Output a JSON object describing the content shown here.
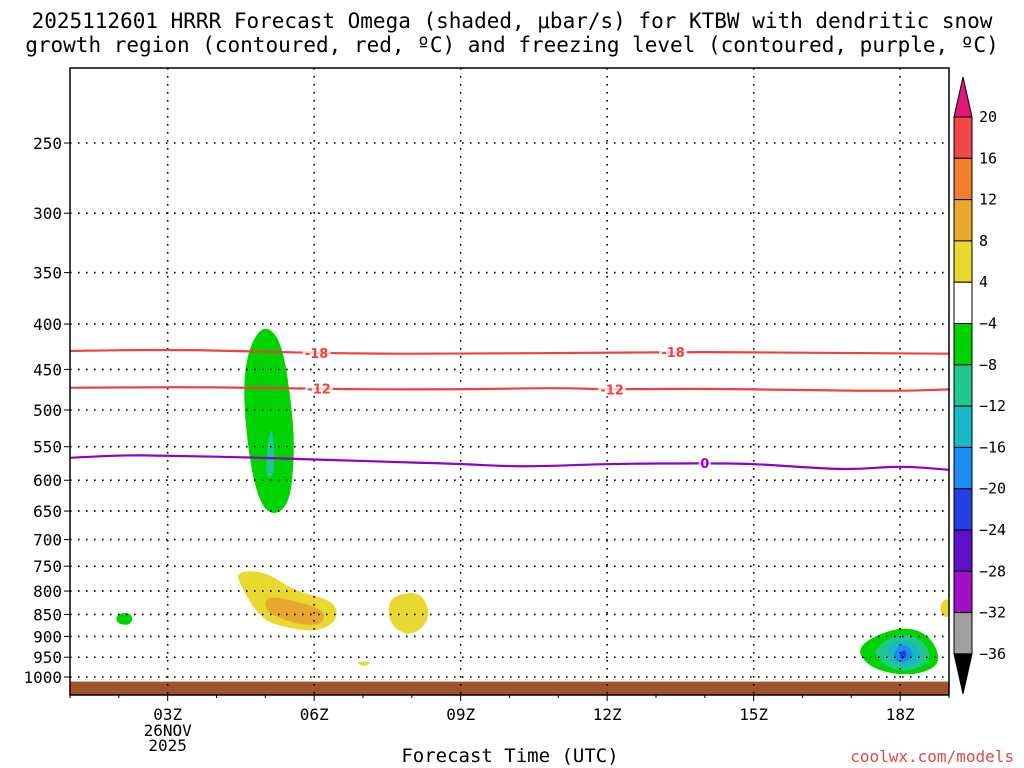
{
  "chart_data": {
    "type": "heatmap",
    "title_line1": "2025112601 HRRR Forecast Omega (shaded, μbar/s) for KTBW with dendritic snow",
    "title_line2": "growth region (contoured, red, ºC) and freezing level (contoured, purple, ºC)",
    "xlabel": "Forecast Time (UTC)",
    "ylabel": "",
    "xlim": [
      1,
      19
    ],
    "ylim": [
      1025,
      200
    ],
    "x_ticks": [
      {
        "hour": 3,
        "label": "03Z",
        "date": "26NOV",
        "year": "2025"
      },
      {
        "hour": 6,
        "label": "06Z"
      },
      {
        "hour": 9,
        "label": "09Z"
      },
      {
        "hour": 12,
        "label": "12Z"
      },
      {
        "hour": 15,
        "label": "15Z"
      },
      {
        "hour": 18,
        "label": "18Z"
      }
    ],
    "y_ticks": [
      250,
      300,
      350,
      400,
      450,
      500,
      550,
      600,
      650,
      700,
      750,
      800,
      850,
      900,
      950,
      1000
    ],
    "grid": true,
    "colorbar": {
      "labels": [
        "20",
        "16",
        "12",
        "8",
        "4",
        "−4",
        "−8",
        "−12",
        "−16",
        "−20",
        "−24",
        "−28",
        "−32",
        "−36"
      ],
      "bins": [
        {
          "from": 20,
          "to": 24,
          "color": "#e0187a"
        },
        {
          "from": 16,
          "to": 20,
          "color": "#f04848"
        },
        {
          "from": 12,
          "to": 16,
          "color": "#f0802c"
        },
        {
          "from": 8,
          "to": 12,
          "color": "#e8a830"
        },
        {
          "from": 4,
          "to": 8,
          "color": "#e8d830"
        },
        {
          "from": -4,
          "to": 4,
          "color": "#ffffff"
        },
        {
          "from": -8,
          "to": -4,
          "color": "#00d400"
        },
        {
          "from": -12,
          "to": -8,
          "color": "#20c890"
        },
        {
          "from": -16,
          "to": -12,
          "color": "#18b8c8"
        },
        {
          "from": -20,
          "to": -16,
          "color": "#1c8cf0"
        },
        {
          "from": -24,
          "to": -20,
          "color": "#2440e0"
        },
        {
          "from": -28,
          "to": -24,
          "color": "#6010c8"
        },
        {
          "from": -32,
          "to": -28,
          "color": "#a010c8"
        },
        {
          "from": -36,
          "to": -32,
          "color": "#a0a0a0"
        },
        {
          "from": -40,
          "to": -36,
          "color": "#000000"
        }
      ]
    },
    "contours": [
      {
        "name": "dgz-minus18",
        "label": "-18",
        "color": "#f04040",
        "label_at": [
          6.05,
          13.35
        ],
        "points": [
          [
            1,
            429
          ],
          [
            3,
            427
          ],
          [
            5,
            430
          ],
          [
            7,
            432
          ],
          [
            9,
            432
          ],
          [
            12,
            431
          ],
          [
            14,
            430
          ],
          [
            16,
            431
          ],
          [
            19,
            432
          ]
        ]
      },
      {
        "name": "dgz-minus12",
        "label": "-12",
        "color": "#f04040",
        "label_at": [
          6.1,
          12.1
        ],
        "points": [
          [
            1,
            472
          ],
          [
            3,
            471
          ],
          [
            5,
            472
          ],
          [
            7,
            474
          ],
          [
            9,
            474
          ],
          [
            11,
            472
          ],
          [
            12,
            474
          ],
          [
            14,
            473
          ],
          [
            16,
            475
          ],
          [
            18,
            476
          ],
          [
            19,
            474
          ]
        ]
      },
      {
        "name": "freezing-level",
        "label": "0",
        "color": "#9000c8",
        "label_at": [
          14.0
        ],
        "points": [
          [
            1,
            566
          ],
          [
            2,
            562
          ],
          [
            3,
            563
          ],
          [
            5,
            566
          ],
          [
            7,
            571
          ],
          [
            9,
            575
          ],
          [
            10,
            579
          ],
          [
            11,
            578
          ],
          [
            12,
            575
          ],
          [
            14,
            574
          ],
          [
            15,
            575
          ],
          [
            16,
            580
          ],
          [
            17,
            584
          ],
          [
            18,
            578
          ],
          [
            19,
            584
          ]
        ]
      }
    ],
    "omega_regions": [
      {
        "name": "green-upper-left",
        "value_bin": -4,
        "points": [
          [
            1.95,
            258
          ],
          [
            2.15,
            295
          ],
          [
            2.1,
            320
          ],
          [
            1.95,
            335
          ],
          [
            1.8,
            310
          ],
          [
            1.85,
            280
          ]
        ]
      },
      {
        "name": "green-main-column",
        "value_bin": -4,
        "points": [
          [
            4.9,
            390
          ],
          [
            5.4,
            375
          ],
          [
            6.05,
            318
          ],
          [
            6.3,
            355
          ],
          [
            6.3,
            450
          ],
          [
            6.5,
            550
          ],
          [
            6.6,
            640
          ],
          [
            6.4,
            680
          ],
          [
            5.8,
            690
          ],
          [
            5.0,
            695
          ],
          [
            4.7,
            650
          ],
          [
            4.4,
            560
          ],
          [
            4.05,
            470
          ],
          [
            3.9,
            410
          ],
          [
            3.9,
            350
          ],
          [
            4.1,
            300
          ],
          [
            4.3,
            290
          ],
          [
            4.6,
            360
          ]
        ]
      },
      {
        "name": "teal-main-column",
        "value_bin": -8,
        "points": [
          [
            4.7,
            420
          ],
          [
            5.0,
            400
          ],
          [
            5.35,
            420
          ],
          [
            5.55,
            500
          ],
          [
            5.6,
            560
          ],
          [
            5.5,
            640
          ],
          [
            5.1,
            660
          ],
          [
            4.8,
            620
          ],
          [
            4.6,
            530
          ],
          [
            4.55,
            460
          ]
        ]
      },
      {
        "name": "cyan-core",
        "value_bin": -12,
        "points": [
          [
            5.05,
            540
          ],
          [
            5.15,
            520
          ],
          [
            5.2,
            580
          ],
          [
            5.1,
            600
          ],
          [
            5.0,
            590
          ]
        ]
      },
      {
        "name": "green-upper-right",
        "value_bin": -4,
        "points": [
          [
            15.0,
            225
          ],
          [
            16.4,
            220
          ],
          [
            16.6,
            270
          ],
          [
            17.1,
            340
          ],
          [
            16.9,
            358
          ],
          [
            16.3,
            368
          ],
          [
            15.5,
            340
          ],
          [
            15.2,
            300
          ],
          [
            15.4,
            260
          ],
          [
            15.0,
            240
          ]
        ]
      },
      {
        "name": "green-right-middle",
        "value_bin": -4,
        "points": [
          [
            17.6,
            500
          ],
          [
            18.3,
            480
          ],
          [
            19,
            465
          ],
          [
            19,
            580
          ],
          [
            18.6,
            588
          ],
          [
            18.0,
            594
          ],
          [
            17.6,
            570
          ],
          [
            17.5,
            530
          ]
        ]
      },
      {
        "name": "green-lower-left",
        "value_bin": -4,
        "points": [
          [
            1.5,
            840
          ],
          [
            2.0,
            795
          ],
          [
            2.6,
            800
          ],
          [
            3.1,
            815
          ],
          [
            3.8,
            820
          ],
          [
            4.25,
            860
          ],
          [
            4.4,
            920
          ],
          [
            4.1,
            960
          ],
          [
            3.4,
            955
          ],
          [
            3.2,
            900
          ],
          [
            2.6,
            900
          ],
          [
            2.1,
            905
          ],
          [
            1.5,
            880
          ],
          [
            1.4,
            860
          ]
        ]
      },
      {
        "name": "teal-lower-left",
        "value_bin": -8,
        "points": [
          [
            1.95,
            850
          ],
          [
            2.2,
            845
          ],
          [
            2.3,
            860
          ],
          [
            2.2,
            875
          ],
          [
            1.95,
            870
          ]
        ]
      },
      {
        "name": "yellow-lower-middle",
        "value_bin": 4,
        "points": [
          [
            4.4,
            760
          ],
          [
            5.0,
            760
          ],
          [
            5.6,
            800
          ],
          [
            6.4,
            820
          ],
          [
            6.5,
            860
          ],
          [
            6.1,
            890
          ],
          [
            5.4,
            880
          ],
          [
            4.9,
            860
          ],
          [
            4.5,
            790
          ]
        ]
      },
      {
        "name": "orange-lower-middle",
        "value_bin": 8,
        "points": [
          [
            5.0,
            810
          ],
          [
            5.6,
            820
          ],
          [
            6.2,
            840
          ],
          [
            6.2,
            870
          ],
          [
            5.8,
            875
          ],
          [
            5.3,
            860
          ],
          [
            5.0,
            840
          ]
        ]
      },
      {
        "name": "yellow-small-8z",
        "value_bin": 4,
        "points": [
          [
            7.6,
            810
          ],
          [
            8.2,
            800
          ],
          [
            8.4,
            860
          ],
          [
            8.0,
            900
          ],
          [
            7.6,
            880
          ],
          [
            7.5,
            840
          ]
        ]
      },
      {
        "name": "green-speck-7z",
        "value_bin": -4,
        "points": [
          [
            6.95,
            900
          ],
          [
            7.05,
            880
          ],
          [
            7.15,
            910
          ],
          [
            7.0,
            920
          ]
        ]
      },
      {
        "name": "yellow-speck-7z",
        "value_bin": 4,
        "points": [
          [
            6.85,
            960
          ],
          [
            7.2,
            962
          ],
          [
            7.0,
            975
          ]
        ]
      },
      {
        "name": "green-speck-15z",
        "value_bin": -4,
        "points": [
          [
            14.95,
            810
          ],
          [
            15.05,
            780
          ],
          [
            15.15,
            830
          ],
          [
            15.05,
            860
          ],
          [
            14.95,
            850
          ]
        ]
      },
      {
        "name": "green-lower-right",
        "value_bin": -4,
        "points": [
          [
            16.1,
            930
          ],
          [
            17.0,
            890
          ],
          [
            18.0,
            858
          ],
          [
            18.6,
            860
          ],
          [
            19,
            930
          ],
          [
            18.8,
            990
          ],
          [
            18.0,
            1005
          ],
          [
            17.2,
            990
          ],
          [
            16.5,
            960
          ]
        ]
      },
      {
        "name": "teal-lower-right",
        "value_bin": -8,
        "points": [
          [
            17.1,
            920
          ],
          [
            18.0,
            875
          ],
          [
            18.6,
            895
          ],
          [
            18.85,
            960
          ],
          [
            18.5,
            990
          ],
          [
            17.9,
            995
          ],
          [
            17.3,
            970
          ]
        ]
      },
      {
        "name": "cyan-lower-right",
        "value_bin": -12,
        "points": [
          [
            17.5,
            925
          ],
          [
            18.0,
            890
          ],
          [
            18.5,
            910
          ],
          [
            18.65,
            960
          ],
          [
            18.2,
            985
          ],
          [
            17.8,
            980
          ],
          [
            17.5,
            950
          ]
        ]
      },
      {
        "name": "blue-lower-right",
        "value_bin": -16,
        "points": [
          [
            17.7,
            930
          ],
          [
            18.0,
            905
          ],
          [
            18.35,
            920
          ],
          [
            18.45,
            960
          ],
          [
            18.1,
            975
          ],
          [
            17.8,
            960
          ]
        ]
      },
      {
        "name": "darkblue-core",
        "value_bin": -20,
        "points": [
          [
            17.9,
            935
          ],
          [
            18.0,
            915
          ],
          [
            18.25,
            930
          ],
          [
            18.25,
            955
          ],
          [
            18.0,
            965
          ],
          [
            17.85,
            952
          ]
        ]
      },
      {
        "name": "purple-core",
        "value_bin": -24,
        "points": [
          [
            18.0,
            940
          ],
          [
            18.1,
            930
          ],
          [
            18.15,
            950
          ],
          [
            18.0,
            955
          ]
        ]
      },
      {
        "name": "yellow-right-edge",
        "value_bin": 4,
        "points": [
          [
            18.8,
            830
          ],
          [
            19,
            810
          ],
          [
            19,
            860
          ],
          [
            18.85,
            850
          ]
        ]
      }
    ],
    "terrain": {
      "label": "surface",
      "pressure_top": 1012,
      "color": "#a0522d"
    }
  },
  "credit": "coolwx.com/models"
}
